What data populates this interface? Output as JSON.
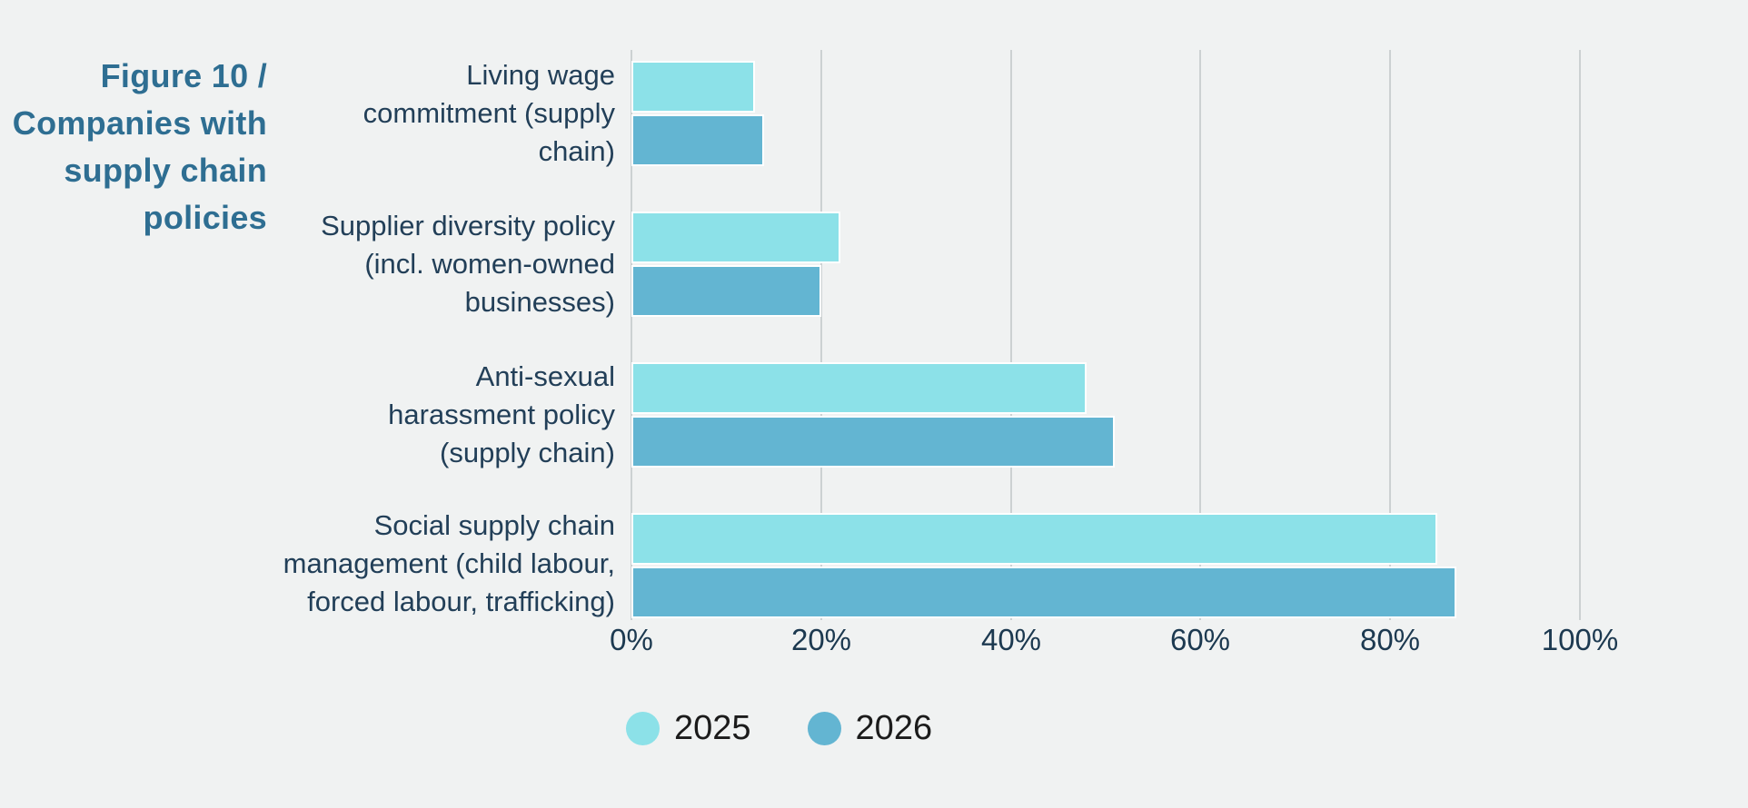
{
  "figure_title": {
    "text": "Figure 10 / Companies with supply chain policies",
    "lines": [
      "Figure 10 /",
      "Companies with",
      "supply chain",
      "policies"
    ]
  },
  "chart_data": {
    "type": "bar",
    "orientation": "horizontal",
    "title": "Figure 10 / Companies with supply chain policies",
    "categories": [
      "Living wage commitment (supply chain)",
      "Supplier diversity policy (incl. women-owned businesses)",
      "Anti-sexual harassment policy (supply chain)",
      "Social supply chain management (child labour, forced labour, trafficking)"
    ],
    "category_lines": [
      [
        "Living wage",
        "commitment (supply",
        "chain)"
      ],
      [
        "Supplier diversity policy",
        "(incl. women-owned",
        "businesses)"
      ],
      [
        "Anti-sexual",
        "harassment policy",
        "(supply chain)"
      ],
      [
        "Social supply chain",
        "management (child labour,",
        "forced labour, trafficking)"
      ]
    ],
    "series": [
      {
        "name": "2025",
        "color": "#8ce1e8",
        "values": [
          13,
          22,
          48,
          85
        ]
      },
      {
        "name": "2026",
        "color": "#63b5d2",
        "values": [
          14,
          20,
          51,
          87
        ]
      }
    ],
    "x_ticks": [
      "0%",
      "20%",
      "40%",
      "60%",
      "80%",
      "100%"
    ],
    "xlim": [
      0,
      100
    ],
    "xlabel": "",
    "ylabel": "",
    "value_unit": "%",
    "grid": "vertical",
    "legend_position": "bottom-left"
  },
  "colors": {
    "background": "#f0f2f2",
    "series_2025": "#8ce1e8",
    "series_2026": "#63b5d2",
    "title_text": "#2e6e92",
    "axis_text": "#1c3950",
    "category_text": "#223f58",
    "legend_text": "#1b1b1b",
    "gridline": "#ccd1d2"
  }
}
